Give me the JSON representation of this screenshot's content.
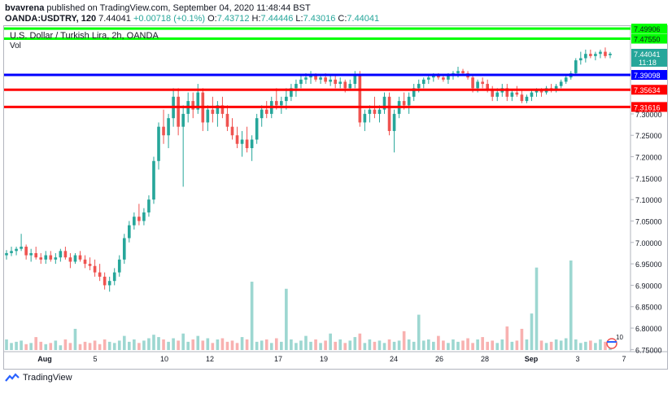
{
  "header": {
    "author": "bvavrena",
    "published_text": "published on TradingView.com, September 04, 2020 11:48:44 BST",
    "symbol": "OANDA:USDTRY, 120",
    "last": "7.44041",
    "change": "+0.00718 (+0.1%)",
    "open_label": "O:",
    "open": "7.43712",
    "high_label": "H:",
    "high": "7.44446",
    "low_label": "L:",
    "low": "7.43016",
    "close_label": "C:",
    "close": "7.44041"
  },
  "footer": {
    "brand": "TradingView"
  },
  "colors": {
    "up": "#26a69a",
    "down": "#ef5350",
    "green_line": "#00ff00",
    "blue_line": "#0000ff",
    "red_line": "#ff0000",
    "badge": "#26a69a"
  },
  "chart_data": {
    "type": "candlestick",
    "title": "U.S. Dollar / Turkish Lira, 2h, OANDA",
    "volume_label": "Vol",
    "x_ticks": [
      "Aug",
      "5",
      "10",
      "12",
      "17",
      "19",
      "24",
      "26",
      "28",
      "Sep",
      "3",
      "7"
    ],
    "y_ticks": [
      "7.30000",
      "7.25000",
      "7.20000",
      "7.15000",
      "7.10000",
      "7.05000",
      "7.00000",
      "6.95000",
      "6.90000",
      "6.85000",
      "6.80000",
      "6.75000"
    ],
    "ylim": [
      6.745,
      7.505
    ],
    "horizontal_lines": [
      {
        "value": 7.49906,
        "label": "7.49906",
        "color": "green"
      },
      {
        "value": 7.4755,
        "label": "7.47550",
        "color": "green"
      },
      {
        "value": 7.39098,
        "label": "7.39098",
        "color": "blue"
      },
      {
        "value": 7.35634,
        "label": "7.35634",
        "color": "red"
      },
      {
        "value": 7.31616,
        "label": "7.31616",
        "color": "red"
      }
    ],
    "price_badges": [
      {
        "label": "7.44041",
        "value": 7.44041
      },
      {
        "label": "11:18",
        "value": 7.4215
      }
    ],
    "candles_ohlc": [
      [
        6.97,
        6.982,
        6.96,
        6.975
      ],
      [
        6.975,
        6.99,
        6.968,
        6.98
      ],
      [
        6.98,
        6.99,
        6.97,
        6.985
      ],
      [
        6.985,
        7.02,
        6.98,
        6.99
      ],
      [
        6.99,
        6.995,
        6.96,
        6.97
      ],
      [
        6.97,
        6.985,
        6.955,
        6.975
      ],
      [
        6.975,
        6.99,
        6.96,
        6.965
      ],
      [
        6.965,
        6.975,
        6.95,
        6.96
      ],
      [
        6.96,
        6.98,
        6.95,
        6.97
      ],
      [
        6.97,
        6.98,
        6.955,
        6.96
      ],
      [
        6.96,
        6.975,
        6.95,
        6.965
      ],
      [
        6.965,
        6.985,
        6.955,
        6.98
      ],
      [
        6.98,
        6.99,
        6.96,
        6.965
      ],
      [
        6.965,
        6.975,
        6.94,
        6.955
      ],
      [
        6.955,
        6.975,
        6.95,
        6.97
      ],
      [
        6.97,
        6.98,
        6.955,
        6.96
      ],
      [
        6.96,
        6.97,
        6.94,
        6.95
      ],
      [
        6.95,
        6.965,
        6.935,
        6.945
      ],
      [
        6.945,
        6.96,
        6.92,
        6.93
      ],
      [
        6.93,
        6.95,
        6.91,
        6.92
      ],
      [
        6.92,
        6.93,
        6.89,
        6.9
      ],
      [
        6.9,
        6.92,
        6.885,
        6.91
      ],
      [
        6.91,
        6.94,
        6.9,
        6.93
      ],
      [
        6.93,
        6.97,
        6.92,
        6.96
      ],
      [
        6.96,
        7.02,
        6.95,
        7.01
      ],
      [
        7.01,
        7.05,
        7.0,
        7.04
      ],
      [
        7.04,
        7.07,
        7.03,
        7.06
      ],
      [
        7.06,
        7.09,
        7.04,
        7.05
      ],
      [
        7.05,
        7.08,
        7.04,
        7.07
      ],
      [
        7.07,
        7.11,
        7.06,
        7.1
      ],
      [
        7.1,
        7.2,
        7.09,
        7.19
      ],
      [
        7.19,
        7.28,
        7.17,
        7.27
      ],
      [
        7.27,
        7.31,
        7.23,
        7.25
      ],
      [
        7.25,
        7.3,
        7.22,
        7.29
      ],
      [
        7.29,
        7.36,
        7.27,
        7.34
      ],
      [
        7.34,
        7.36,
        7.25,
        7.27
      ],
      [
        7.27,
        7.32,
        7.13,
        7.3
      ],
      [
        7.3,
        7.35,
        7.28,
        7.33
      ],
      [
        7.33,
        7.35,
        7.29,
        7.31
      ],
      [
        7.31,
        7.37,
        7.3,
        7.35
      ],
      [
        7.35,
        7.36,
        7.26,
        7.28
      ],
      [
        7.28,
        7.32,
        7.26,
        7.31
      ],
      [
        7.31,
        7.34,
        7.28,
        7.3
      ],
      [
        7.3,
        7.33,
        7.27,
        7.32
      ],
      [
        7.32,
        7.34,
        7.29,
        7.3
      ],
      [
        7.3,
        7.32,
        7.26,
        7.27
      ],
      [
        7.27,
        7.29,
        7.24,
        7.25
      ],
      [
        7.25,
        7.27,
        7.22,
        7.23
      ],
      [
        7.23,
        7.26,
        7.2,
        7.24
      ],
      [
        7.24,
        7.27,
        7.21,
        7.22
      ],
      [
        7.22,
        7.25,
        7.19,
        7.24
      ],
      [
        7.24,
        7.3,
        7.23,
        7.29
      ],
      [
        7.29,
        7.32,
        7.27,
        7.31
      ],
      [
        7.31,
        7.33,
        7.29,
        7.3
      ],
      [
        7.3,
        7.34,
        7.29,
        7.33
      ],
      [
        7.33,
        7.36,
        7.31,
        7.32
      ],
      [
        7.32,
        7.34,
        7.3,
        7.33
      ],
      [
        7.33,
        7.36,
        7.31,
        7.34
      ],
      [
        7.34,
        7.37,
        7.33,
        7.36
      ],
      [
        7.36,
        7.38,
        7.34,
        7.37
      ],
      [
        7.37,
        7.39,
        7.36,
        7.38
      ],
      [
        7.38,
        7.395,
        7.37,
        7.385
      ],
      [
        7.385,
        7.4,
        7.37,
        7.39
      ],
      [
        7.39,
        7.395,
        7.375,
        7.38
      ],
      [
        7.38,
        7.39,
        7.37,
        7.385
      ],
      [
        7.385,
        7.395,
        7.37,
        7.375
      ],
      [
        7.375,
        7.39,
        7.365,
        7.38
      ],
      [
        7.38,
        7.39,
        7.36,
        7.37
      ],
      [
        7.37,
        7.385,
        7.36,
        7.375
      ],
      [
        7.375,
        7.38,
        7.35,
        7.36
      ],
      [
        7.36,
        7.38,
        7.355,
        7.37
      ],
      [
        7.37,
        7.4,
        7.36,
        7.39
      ],
      [
        7.39,
        7.4,
        7.27,
        7.28
      ],
      [
        7.28,
        7.31,
        7.26,
        7.3
      ],
      [
        7.3,
        7.32,
        7.28,
        7.31
      ],
      [
        7.31,
        7.34,
        7.29,
        7.3
      ],
      [
        7.3,
        7.32,
        7.28,
        7.31
      ],
      [
        7.31,
        7.35,
        7.3,
        7.34
      ],
      [
        7.34,
        7.35,
        7.25,
        7.26
      ],
      [
        7.26,
        7.31,
        7.21,
        7.3
      ],
      [
        7.3,
        7.34,
        7.29,
        7.33
      ],
      [
        7.33,
        7.35,
        7.31,
        7.32
      ],
      [
        7.32,
        7.35,
        7.3,
        7.34
      ],
      [
        7.34,
        7.37,
        7.33,
        7.36
      ],
      [
        7.36,
        7.38,
        7.35,
        7.37
      ],
      [
        7.37,
        7.385,
        7.36,
        7.38
      ],
      [
        7.38,
        7.39,
        7.37,
        7.385
      ],
      [
        7.385,
        7.395,
        7.375,
        7.39
      ],
      [
        7.39,
        7.395,
        7.38,
        7.385
      ],
      [
        7.385,
        7.39,
        7.375,
        7.38
      ],
      [
        7.38,
        7.395,
        7.37,
        7.39
      ],
      [
        7.39,
        7.4,
        7.38,
        7.395
      ],
      [
        7.395,
        7.41,
        7.385,
        7.4
      ],
      [
        7.4,
        7.405,
        7.39,
        7.395
      ],
      [
        7.395,
        7.4,
        7.38,
        7.385
      ],
      [
        7.385,
        7.39,
        7.35,
        7.36
      ],
      [
        7.36,
        7.38,
        7.35,
        7.375
      ],
      [
        7.375,
        7.385,
        7.36,
        7.37
      ],
      [
        7.37,
        7.38,
        7.35,
        7.355
      ],
      [
        7.355,
        7.365,
        7.33,
        7.34
      ],
      [
        7.34,
        7.36,
        7.33,
        7.35
      ],
      [
        7.35,
        7.37,
        7.34,
        7.36
      ],
      [
        7.36,
        7.37,
        7.33,
        7.34
      ],
      [
        7.34,
        7.355,
        7.33,
        7.35
      ],
      [
        7.35,
        7.365,
        7.34,
        7.345
      ],
      [
        7.345,
        7.355,
        7.325,
        7.33
      ],
      [
        7.33,
        7.345,
        7.325,
        7.34
      ],
      [
        7.34,
        7.355,
        7.33,
        7.35
      ],
      [
        7.35,
        7.36,
        7.34,
        7.355
      ],
      [
        7.355,
        7.36,
        7.34,
        7.35
      ],
      [
        7.35,
        7.365,
        7.345,
        7.36
      ],
      [
        7.36,
        7.37,
        7.35,
        7.355
      ],
      [
        7.355,
        7.37,
        7.35,
        7.365
      ],
      [
        7.365,
        7.38,
        7.36,
        7.375
      ],
      [
        7.375,
        7.39,
        7.37,
        7.385
      ],
      [
        7.385,
        7.4,
        7.38,
        7.395
      ],
      [
        7.395,
        7.43,
        7.39,
        7.425
      ],
      [
        7.425,
        7.445,
        7.415,
        7.43
      ],
      [
        7.43,
        7.45,
        7.42,
        7.44
      ],
      [
        7.44,
        7.45,
        7.43,
        7.435
      ],
      [
        7.435,
        7.445,
        7.425,
        7.44
      ],
      [
        7.44,
        7.45,
        7.43,
        7.445
      ],
      [
        7.445,
        7.455,
        7.43,
        7.435
      ],
      [
        7.437,
        7.4445,
        7.43,
        7.4404
      ]
    ],
    "volume": [
      0.9,
      0.6,
      0.7,
      0.8,
      0.5,
      0.6,
      1.1,
      0.7,
      0.5,
      0.6,
      0.8,
      0.4,
      0.9,
      0.6,
      1.8,
      0.5,
      0.7,
      0.6,
      0.8,
      0.5,
      0.9,
      0.7,
      0.6,
      0.8,
      1.2,
      0.7,
      0.9,
      0.6,
      0.8,
      1.0,
      1.3,
      1.1,
      0.9,
      0.7,
      1.0,
      0.8,
      1.4,
      0.7,
      0.9,
      1.2,
      0.8,
      1.0,
      0.6,
      0.9,
      1.0,
      0.7,
      0.8,
      0.6,
      1.1,
      0.9,
      5.8,
      0.7,
      0.8,
      0.9,
      0.6,
      1.0,
      0.7,
      5.2,
      0.9,
      0.6,
      0.8,
      1.2,
      0.7,
      0.9,
      0.6,
      0.8,
      1.4,
      0.7,
      0.9,
      0.6,
      0.8,
      1.1,
      1.4,
      0.6,
      0.9,
      0.7,
      0.8,
      0.6,
      0.9,
      0.7,
      0.8,
      1.6,
      0.9,
      0.7,
      3.0,
      0.8,
      0.9,
      0.7,
      1.2,
      0.8,
      0.6,
      0.9,
      0.7,
      0.8,
      1.0,
      0.6,
      0.9,
      1.1,
      0.7,
      0.8,
      0.6,
      0.9,
      2.0,
      0.7,
      0.8,
      1.8,
      0.9,
      3.1,
      7.0,
      0.8,
      0.6,
      0.7,
      0.9,
      0.8,
      1.0,
      7.6,
      0.9,
      0.6,
      0.7,
      0.8,
      0.6,
      0.9,
      0.7,
      0.5
    ],
    "overlay_marker": "10"
  }
}
